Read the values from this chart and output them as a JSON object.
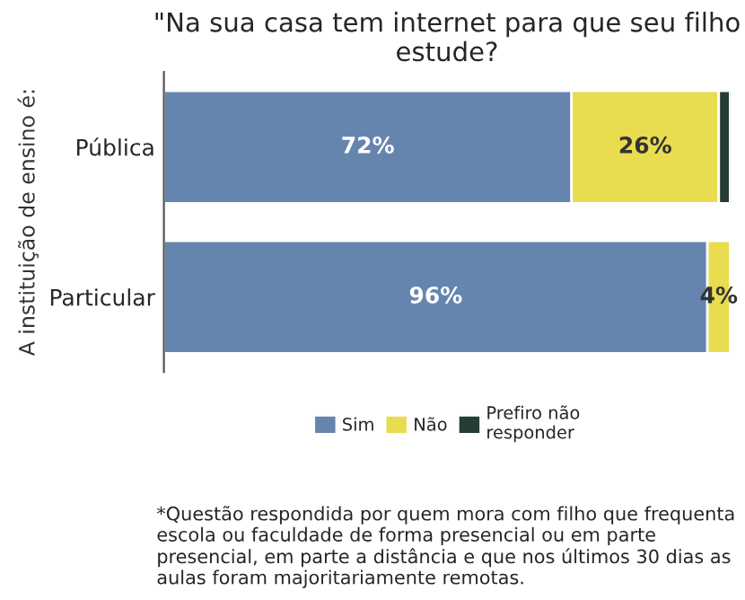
{
  "chart_data": {
    "type": "bar",
    "orientation": "horizontal",
    "stacked": true,
    "title": "\"Na sua casa tem internet para que seu filho estude?",
    "ylabel": "A instituição de ensino é:",
    "categories": [
      "Pública",
      "Particular"
    ],
    "xlim": [
      0,
      100
    ],
    "tick_labels": "y",
    "grid": false,
    "legend": "bottom",
    "series": [
      {
        "name": "Sim",
        "color": "#6585ae",
        "values": [
          72,
          96
        ],
        "value_labels": [
          "72%",
          "96%"
        ]
      },
      {
        "name": "Não",
        "color": "#e9dc4e",
        "values": [
          26,
          4
        ],
        "value_labels": [
          "26%",
          "4%"
        ]
      },
      {
        "name": "Prefiro não\nresponder",
        "color": "#253d33",
        "values": [
          2,
          null
        ],
        "value_labels": [
          null,
          null
        ]
      }
    ],
    "annotations": [
      "*Questão respondida por quem mora com filho que frequenta escola ou faculdade de forma presencial ou em parte presencial, em parte a distância e que nos últimos 30 dias as aulas foram majoritariamente remotas."
    ]
  }
}
